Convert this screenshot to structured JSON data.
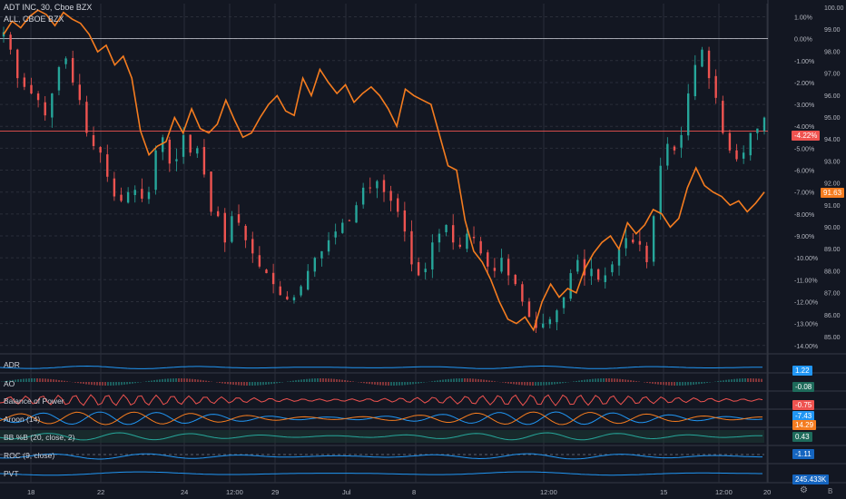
{
  "header": {
    "symbol_line": "ADT INC, 30, Cboe BZX",
    "compare_line": "ALL, CBOE BZX"
  },
  "colors": {
    "background": "#131722",
    "grid": "#2a2e39",
    "up": "#26a69a",
    "down": "#ef5350",
    "compare": "#f57c1f",
    "zero_line": "#b2b5be",
    "price_line": "#ef5350",
    "accent_blue": "#2196f3"
  },
  "chart_data": {
    "type": "candlestick",
    "title": "ADT INC, 30, Cboe BZX",
    "compare_series": {
      "name": "ALL, CBOE BZX",
      "color": "#f57c1f"
    },
    "x_ticks": [
      "18",
      "22",
      "24",
      "12:00",
      "29",
      "Jul",
      "8",
      "12:00",
      "15",
      "12:00",
      "20"
    ],
    "percent_axis": [
      "1.00%",
      "0.00%",
      "-1.00%",
      "-2.00%",
      "-3.00%",
      "-4.00%",
      "-5.00%",
      "-6.00%",
      "-7.00%",
      "-8.00%",
      "-9.00%",
      "-10.00%",
      "-11.00%",
      "-12.00%",
      "-13.00%",
      "-14.00%"
    ],
    "price_axis": [
      "100.00",
      "99.00",
      "98.00",
      "97.00",
      "96.00",
      "95.00",
      "94.00",
      "93.00",
      "92.00",
      "91.00",
      "90.00",
      "89.00",
      "88.00",
      "87.00",
      "86.00",
      "85.00"
    ],
    "ylim_percent": [
      -14.3,
      1.6
    ],
    "grid": true,
    "adt_percent": [
      0.3,
      -0.5,
      -1.8,
      -2.2,
      -2.5,
      -2.8,
      -3.5,
      -2.5,
      -1.3,
      -0.9,
      -2.0,
      -2.8,
      -4.3,
      -4.9,
      -5.2,
      -6.3,
      -7.2,
      -7.4,
      -7.0,
      -6.9,
      -7.3,
      -7.0,
      -5.1,
      -4.5,
      -5.7,
      -5.5,
      -4.4,
      -5.2,
      -5.0,
      -6.2,
      -7.9,
      -8.1,
      -9.3,
      -8.1,
      -8.4,
      -9.2,
      -9.8,
      -10.4,
      -10.7,
      -11.2,
      -11.7,
      -11.9,
      -11.8,
      -11.3,
      -10.6,
      -10.0,
      -9.7,
      -9.2,
      -8.8,
      -8.4,
      -8.3,
      -7.6,
      -6.8,
      -6.8,
      -6.5,
      -7.0,
      -7.4,
      -7.9,
      -8.8,
      -10.3,
      -10.8,
      -10.5,
      -9.3,
      -8.9,
      -8.5,
      -9.3,
      -9.5,
      -8.9,
      -9.1,
      -9.8,
      -10.4,
      -10.6,
      -10.0,
      -10.8,
      -11.2,
      -12.0,
      -12.7,
      -13.2,
      -13.0,
      -12.8,
      -12.4,
      -11.8,
      -10.7,
      -10.1,
      -10.8,
      -10.5,
      -11.0,
      -10.8,
      -10.3,
      -9.6,
      -9.1,
      -9.3,
      -9.4,
      -10.2,
      -8.1,
      -5.8,
      -4.8,
      -5.1,
      -4.4,
      -2.5,
      -1.2,
      -0.5,
      -1.8,
      -2.7,
      -4.3,
      -5.1,
      -5.5,
      -5.2,
      -4.3,
      -4.1,
      -3.6
    ],
    "all_percent": [
      0.2,
      0.8,
      0.5,
      1.0,
      1.3,
      1.1,
      0.6,
      1.2,
      0.9,
      0.7,
      0.2,
      -0.6,
      -0.3,
      -1.2,
      -0.8,
      -1.8,
      -4.2,
      -5.3,
      -4.9,
      -4.7,
      -3.6,
      -4.3,
      -3.2,
      -4.1,
      -4.3,
      -3.9,
      -2.8,
      -3.7,
      -4.5,
      -4.3,
      -3.6,
      -3.0,
      -2.6,
      -3.3,
      -3.5,
      -1.8,
      -2.6,
      -1.4,
      -2.0,
      -2.5,
      -2.1,
      -2.9,
      -2.5,
      -2.2,
      -2.6,
      -3.2,
      -4.0,
      -2.3,
      -2.6,
      -2.8,
      -3.0,
      -4.4,
      -5.8,
      -6.0,
      -8.3,
      -9.7,
      -10.2,
      -11.0,
      -12.0,
      -12.8,
      -13.0,
      -12.7,
      -13.3,
      -12.0,
      -11.2,
      -11.8,
      -11.4,
      -11.6,
      -10.5,
      -9.8,
      -9.3,
      -9.0,
      -9.6,
      -8.4,
      -8.9,
      -8.5,
      -7.8,
      -8.0,
      -8.6,
      -8.2,
      -6.8,
      -5.9,
      -6.7,
      -7.0,
      -7.2,
      -7.6,
      -7.4,
      -7.9,
      -7.5,
      -7.0
    ]
  },
  "price_labels": {
    "current_percent": "-4.22%",
    "compare_price": "91.63"
  },
  "panes": [
    {
      "title": "ADR",
      "value": "1.22",
      "color": "#2196f3"
    },
    {
      "title": "AO",
      "value": "-0.08",
      "color": "#26a69a"
    },
    {
      "title": "Balance of Power",
      "value": "-0.75",
      "color": "#ef5350"
    },
    {
      "title": "Aroon (14)",
      "value": "14.29",
      "value2": "-7.43",
      "color": "#f57c1f"
    },
    {
      "title": "BB %B (20, close, 2)",
      "value": "0.43",
      "color": "#26a69a"
    },
    {
      "title": "ROC (9, close)",
      "value": "-1.11",
      "color": "#2196f3"
    },
    {
      "title": "PVT",
      "value": "245.433K",
      "color": "#2196f3"
    }
  ],
  "footer": {
    "settings_icon": "gear-icon"
  }
}
